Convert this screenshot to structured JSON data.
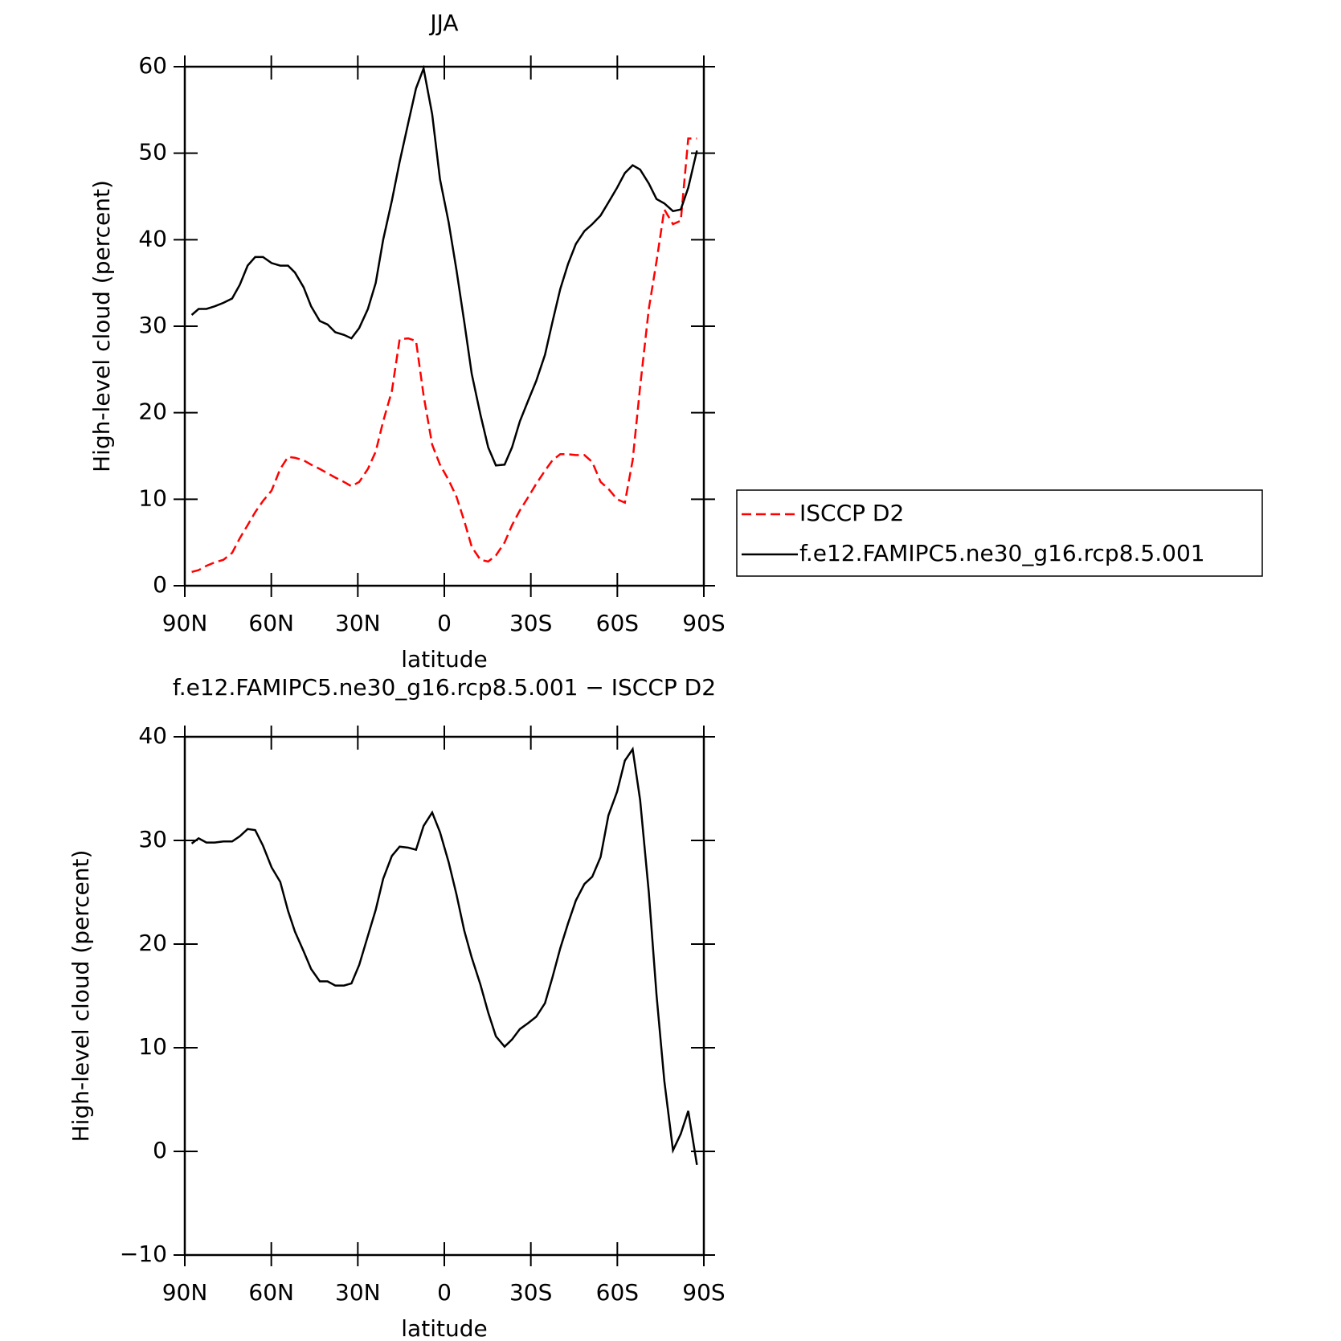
{
  "chart_data": [
    {
      "type": "line",
      "title": "JJA",
      "xlabel": "latitude",
      "ylabel": "High-level cloud (percent)",
      "xlim": [
        90,
        -90
      ],
      "xticks": [
        {
          "value": 90,
          "label": "90N"
        },
        {
          "value": 60,
          "label": "60N"
        },
        {
          "value": 30,
          "label": "30N"
        },
        0,
        {
          "value": -30,
          "label": "30S"
        },
        {
          "value": -60,
          "label": "60S"
        },
        {
          "value": -90,
          "label": "90S"
        }
      ],
      "ylim": [
        0,
        60
      ],
      "yticks": [
        0,
        10,
        20,
        30,
        40,
        50,
        60
      ],
      "legend": "right",
      "x": [
        87.6,
        85.2,
        82.5,
        79.6,
        76.6,
        73.6,
        70.9,
        68.2,
        65.6,
        62.9,
        59.9,
        56.9,
        54.2,
        51.8,
        48.8,
        46.2,
        43.2,
        40.5,
        37.8,
        34.8,
        32.2,
        29.5,
        26.5,
        23.8,
        21.2,
        18.2,
        15.5,
        12.5,
        9.8,
        7.2,
        4.2,
        1.5,
        -1.5,
        -4.2,
        -6.9,
        -9.5,
        -12.5,
        -15.2,
        -17.9,
        -20.9,
        -23.5,
        -26.2,
        -29.2,
        -31.9,
        -34.9,
        -37.5,
        -40.2,
        -42.9,
        -45.6,
        -48.6,
        -51.3,
        -54.2,
        -56.9,
        -59.9,
        -62.6,
        -65.3,
        -67.9,
        -70.9,
        -73.6,
        -76.3,
        -79.3,
        -82.0,
        -84.6,
        -87.6
      ],
      "series": [
        {
          "name": "ISCCP D2",
          "color": "#ff0000",
          "line_style": "dashed",
          "values": [
            1.6,
            1.8,
            2.3,
            2.7,
            3.0,
            3.8,
            5.5,
            7.0,
            8.5,
            9.8,
            11.0,
            13.5,
            14.9,
            14.8,
            14.5,
            14.0,
            13.5,
            13.0,
            12.5,
            12.0,
            11.5,
            12.0,
            13.5,
            15.5,
            19.0,
            22.5,
            28.5,
            28.6,
            28.3,
            22.0,
            16.3,
            14.0,
            12.2,
            10.3,
            7.5,
            4.5,
            3.0,
            2.8,
            3.5,
            5.0,
            7.0,
            8.7,
            10.3,
            11.8,
            13.3,
            14.5,
            15.2,
            15.2,
            15.1,
            15.1,
            14.3,
            12.0,
            11.2,
            10.0,
            9.6,
            14.5,
            23.0,
            32.0,
            37.5,
            43.5,
            41.8,
            42.2,
            51.7,
            51.7
          ]
        },
        {
          "name": "f.e12.FAMIPC5.ne30_g16.rcp8.5.001",
          "color": "#000000",
          "line_style": "solid",
          "values": [
            31.3,
            32.0,
            32.0,
            32.3,
            32.7,
            33.2,
            34.8,
            37.0,
            38.0,
            38.0,
            37.3,
            37.0,
            37.0,
            36.2,
            34.5,
            32.3,
            30.6,
            30.2,
            29.3,
            29.0,
            28.6,
            29.8,
            32.0,
            35.0,
            40.0,
            44.5,
            49.0,
            53.5,
            57.5,
            59.8,
            54.5,
            47.0,
            42.0,
            36.5,
            30.5,
            24.5,
            19.8,
            16.0,
            13.9,
            14.0,
            16.0,
            19.0,
            21.5,
            23.7,
            26.7,
            30.5,
            34.3,
            37.2,
            39.5,
            41.0,
            41.8,
            42.8,
            44.3,
            46.0,
            47.7,
            48.6,
            48.1,
            46.5,
            44.7,
            44.2,
            43.3,
            43.5,
            46.0,
            50.3
          ]
        }
      ]
    },
    {
      "type": "line",
      "title": "f.e12.FAMIPC5.ne30_g16.rcp8.5.001 − ISCCP D2",
      "xlabel": "latitude",
      "ylabel": "High-level cloud (percent)",
      "xlim": [
        90,
        -90
      ],
      "xticks": [
        {
          "value": 90,
          "label": "90N"
        },
        {
          "value": 60,
          "label": "60N"
        },
        {
          "value": 30,
          "label": "30N"
        },
        0,
        {
          "value": -30,
          "label": "30S"
        },
        {
          "value": -60,
          "label": "60S"
        },
        {
          "value": -90,
          "label": "90S"
        }
      ],
      "ylim": [
        -10,
        40
      ],
      "yticks": [
        {
          "value": -10,
          "label": "−10"
        },
        0,
        10,
        20,
        30,
        40
      ],
      "x": [
        87.6,
        85.2,
        82.5,
        79.6,
        76.6,
        73.6,
        70.9,
        68.2,
        65.6,
        62.9,
        59.9,
        56.9,
        54.2,
        51.8,
        48.8,
        46.2,
        43.2,
        40.5,
        37.8,
        34.8,
        32.2,
        29.5,
        26.5,
        23.8,
        21.2,
        18.2,
        15.5,
        12.5,
        9.8,
        7.2,
        4.2,
        1.5,
        -1.5,
        -4.2,
        -6.9,
        -9.5,
        -12.5,
        -15.2,
        -17.9,
        -20.9,
        -23.5,
        -26.2,
        -29.2,
        -31.9,
        -34.9,
        -37.5,
        -40.2,
        -42.9,
        -45.6,
        -48.6,
        -51.3,
        -54.2,
        -56.9,
        -59.9,
        -62.6,
        -65.3,
        -67.9,
        -70.9,
        -73.6,
        -76.3,
        -79.3,
        -82.0,
        -84.6,
        -87.6
      ],
      "series": [
        {
          "color": "#000000",
          "line_style": "solid",
          "values": [
            29.7,
            30.2,
            29.8,
            29.8,
            29.9,
            29.9,
            30.4,
            31.1,
            31.0,
            29.5,
            27.4,
            26.0,
            23.2,
            21.2,
            19.3,
            17.6,
            16.4,
            16.4,
            16.0,
            16.0,
            16.2,
            18.0,
            20.8,
            23.3,
            26.3,
            28.5,
            29.4,
            29.3,
            29.1,
            31.4,
            32.7,
            30.8,
            27.9,
            24.8,
            21.3,
            18.7,
            16.1,
            13.4,
            11.1,
            10.1,
            10.8,
            11.8,
            12.4,
            13.0,
            14.3,
            16.8,
            19.6,
            22.0,
            24.2,
            25.8,
            26.5,
            28.4,
            32.4,
            34.7,
            37.7,
            38.8,
            33.9,
            25.0,
            15.1,
            6.8,
            0.1,
            1.7,
            3.9,
            -1.3
          ]
        }
      ]
    }
  ]
}
